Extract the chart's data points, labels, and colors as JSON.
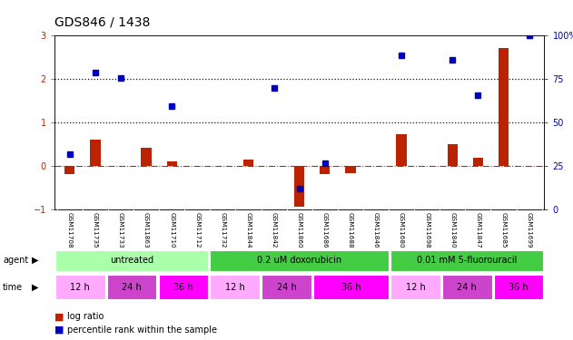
{
  "title": "GDS846 / 1438",
  "samples": [
    "GSM11708",
    "GSM11735",
    "GSM11733",
    "GSM11863",
    "GSM11710",
    "GSM11712",
    "GSM11732",
    "GSM11844",
    "GSM11842",
    "GSM11860",
    "GSM11686",
    "GSM11688",
    "GSM11846",
    "GSM11680",
    "GSM11698",
    "GSM11840",
    "GSM11847",
    "GSM11685",
    "GSM11699"
  ],
  "log_ratio": [
    -0.2,
    0.6,
    0.0,
    0.42,
    0.1,
    0.0,
    0.0,
    0.15,
    0.0,
    -0.95,
    -0.2,
    -0.18,
    0.0,
    0.72,
    0.0,
    0.5,
    0.18,
    2.72,
    0.0
  ],
  "pct_rank_left": [
    0.27,
    2.15,
    2.02,
    0.0,
    1.38,
    0.0,
    0.0,
    0.0,
    1.8,
    -0.52,
    0.05,
    0.0,
    0.0,
    2.55,
    0.0,
    2.45,
    1.62,
    0.0,
    3.0
  ],
  "pct_has_value": [
    true,
    true,
    true,
    false,
    true,
    false,
    false,
    false,
    true,
    true,
    true,
    false,
    false,
    true,
    false,
    true,
    true,
    false,
    true
  ],
  "agent_groups": [
    {
      "label": "untreated",
      "start": 0,
      "end": 6,
      "color": "#aaffaa"
    },
    {
      "label": "0.2 uM doxorubicin",
      "start": 6,
      "end": 13,
      "color": "#44cc44"
    },
    {
      "label": "0.01 mM 5-fluorouracil",
      "start": 13,
      "end": 19,
      "color": "#44cc44"
    }
  ],
  "time_groups": [
    {
      "label": "12 h",
      "start": 0,
      "end": 2,
      "color": "#ffaaff"
    },
    {
      "label": "24 h",
      "start": 2,
      "end": 4,
      "color": "#dd55dd"
    },
    {
      "label": "36 h",
      "start": 4,
      "end": 6,
      "color": "#ff22ff"
    },
    {
      "label": "12 h",
      "start": 6,
      "end": 8,
      "color": "#ffaaff"
    },
    {
      "label": "24 h",
      "start": 8,
      "end": 10,
      "color": "#dd55dd"
    },
    {
      "label": "36 h",
      "start": 10,
      "end": 13,
      "color": "#ff22ff"
    },
    {
      "label": "12 h",
      "start": 13,
      "end": 15,
      "color": "#ffaaff"
    },
    {
      "label": "24 h",
      "start": 15,
      "end": 17,
      "color": "#dd55dd"
    },
    {
      "label": "36 h",
      "start": 17,
      "end": 19,
      "color": "#ff22ff"
    }
  ],
  "ylim_left": [
    -1,
    3
  ],
  "ylim_right": [
    0,
    100
  ],
  "yticks_left": [
    -1,
    0,
    1,
    2,
    3
  ],
  "yticks_right": [
    0,
    25,
    50,
    75,
    100
  ],
  "bar_color_red": "#bb2200",
  "bar_color_blue": "#0000bb",
  "hline_color": "#cc2200",
  "dotted_color": "#111111",
  "bg_color": "#ffffff",
  "tick_label_area_color": "#c8c8c8"
}
